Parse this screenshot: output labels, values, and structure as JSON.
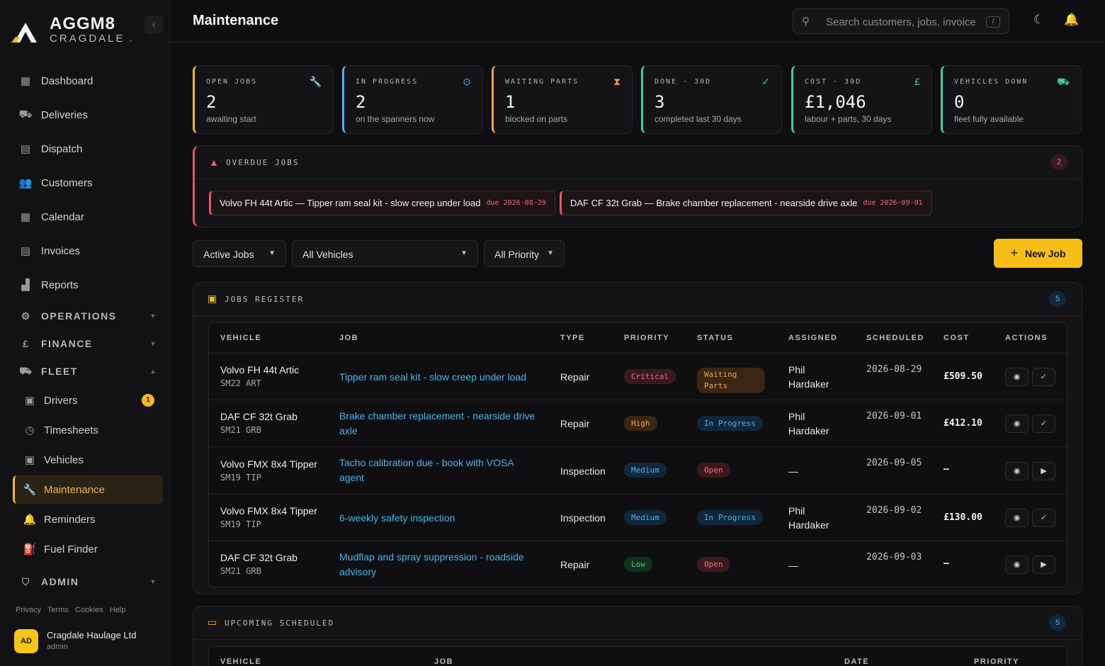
{
  "brand": {
    "name": "AGGM8",
    "sub": "CRAGDALE"
  },
  "nav": [
    {
      "label": "Dashboard",
      "icon": "dashboard-icon"
    },
    {
      "label": "Deliveries",
      "icon": "truck-icon"
    },
    {
      "label": "Dispatch",
      "icon": "dispatch-icon"
    },
    {
      "label": "Customers",
      "icon": "users-icon"
    },
    {
      "label": "Calendar",
      "icon": "calendar-icon"
    },
    {
      "label": "Invoices",
      "icon": "invoice-icon"
    },
    {
      "label": "Reports",
      "icon": "bar-chart-icon"
    }
  ],
  "sections": {
    "operations": "OPERATIONS",
    "finance": "FINANCE",
    "fleet": "FLEET",
    "admin": "ADMIN"
  },
  "fleet_items": [
    {
      "label": "Drivers",
      "badge": "1"
    },
    {
      "label": "Timesheets"
    },
    {
      "label": "Vehicles"
    },
    {
      "label": "Maintenance"
    },
    {
      "label": "Reminders"
    },
    {
      "label": "Fuel Finder"
    }
  ],
  "footer_links": [
    "Privacy",
    "Terms",
    "Cookies",
    "Help"
  ],
  "user": {
    "initials": "AD",
    "name": "Cragdale Haulage Ltd",
    "role": "admin"
  },
  "header": {
    "title": "Maintenance",
    "search_placeholder": "Search customers, jobs, invoices",
    "search_kbd": "/"
  },
  "stats": [
    {
      "label": "OPEN JOBS",
      "value": "2",
      "desc": "awaiting start",
      "color": "#f5b81e"
    },
    {
      "label": "IN PROGRESS",
      "value": "2",
      "desc": "on the spanners now",
      "color": "#3fb6ee"
    },
    {
      "label": "WAITING PARTS",
      "value": "1",
      "desc": "blocked on parts",
      "color": "#f2a14a"
    },
    {
      "label": "DONE · 30D",
      "value": "3",
      "desc": "completed last 30 days",
      "color": "#3fcf9a"
    },
    {
      "label": "COST · 30D",
      "value": "£1,046",
      "desc": "labour + parts, 30 days",
      "color": "#3fcf9a"
    },
    {
      "label": "VEHICLES DOWN",
      "value": "0",
      "desc": "fleet fully available",
      "color": "#3fcf9a"
    }
  ],
  "overdue": {
    "title": "OVERDUE JOBS",
    "count": "2",
    "items": [
      {
        "text": "Volvo FH 44t Artic — Tipper ram seal kit - slow creep under load",
        "due": "due 2026-08-29"
      },
      {
        "text": "DAF CF 32t Grab — Brake chamber replacement - nearside drive axle",
        "due": "due 2026-09-01"
      }
    ]
  },
  "filters": {
    "status": "Active Jobs",
    "vehicle": "All Vehicles",
    "priority": "All Priority",
    "new_job": "New Job"
  },
  "register": {
    "title": "JOBS REGISTER",
    "count": "5",
    "columns": [
      "VEHICLE",
      "JOB",
      "TYPE",
      "PRIORITY",
      "STATUS",
      "ASSIGNED",
      "SCHEDULED",
      "COST",
      "ACTIONS"
    ],
    "rows": [
      {
        "vehicle": "Volvo FH 44t Artic",
        "reg": "SM22 ART",
        "job": "Tipper ram seal kit - slow creep under load",
        "type": "Repair",
        "priority": "Critical",
        "status": "Waiting Parts",
        "assigned": "Phil Hardaker",
        "scheduled": "2026-08-29",
        "cost": "£509.50"
      },
      {
        "vehicle": "DAF CF 32t Grab",
        "reg": "SM21 GRB",
        "job": "Brake chamber replacement - nearside drive axle",
        "type": "Repair",
        "priority": "High",
        "status": "In Progress",
        "assigned": "Phil Hardaker",
        "scheduled": "2026-09-01",
        "cost": "£412.10"
      },
      {
        "vehicle": "Volvo FMX 8x4 Tipper",
        "reg": "SM19 TIP",
        "job": "Tacho calibration due - book with VOSA agent",
        "type": "Inspection",
        "priority": "Medium",
        "status": "Open",
        "assigned": "—",
        "scheduled": "2026-09-05",
        "cost": "–"
      },
      {
        "vehicle": "Volvo FMX 8x4 Tipper",
        "reg": "SM19 TIP",
        "job": "6-weekly safety inspection",
        "type": "Inspection",
        "priority": "Medium",
        "status": "In Progress",
        "assigned": "Phil Hardaker",
        "scheduled": "2026-09-02",
        "cost": "£130.00"
      },
      {
        "vehicle": "DAF CF 32t Grab",
        "reg": "SM21 GRB",
        "job": "Mudflap and spray suppression - roadside advisory",
        "type": "Repair",
        "priority": "Low",
        "status": "Open",
        "assigned": "—",
        "scheduled": "2026-09-03",
        "cost": "–"
      }
    ]
  },
  "upcoming": {
    "title": "UPCOMING SCHEDULED",
    "count": "5",
    "columns": [
      "VEHICLE",
      "JOB",
      "DATE",
      "PRIORITY"
    ]
  }
}
